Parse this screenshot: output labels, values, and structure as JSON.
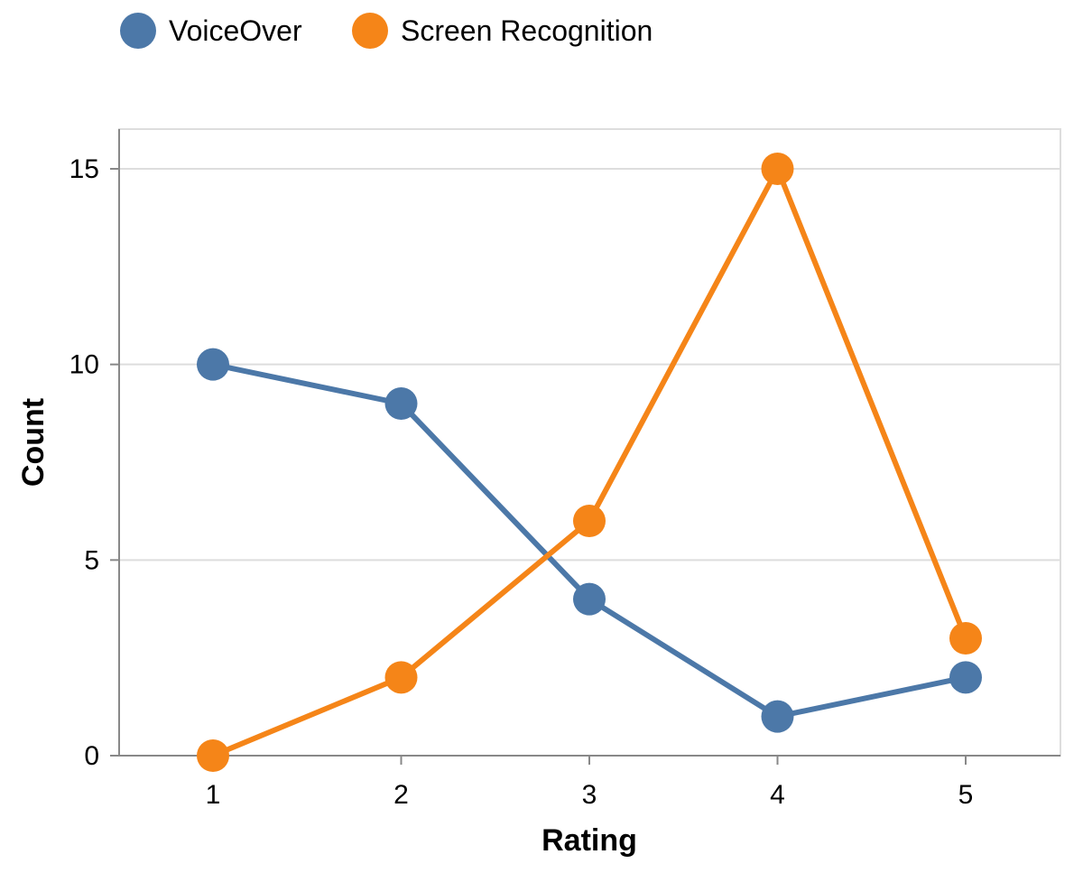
{
  "chart_data": {
    "type": "line",
    "categories": [
      "1",
      "2",
      "3",
      "4",
      "5"
    ],
    "x": [
      1,
      2,
      3,
      4,
      5
    ],
    "xlabel": "Rating",
    "ylabel": "Count",
    "xlim": [
      0.5,
      5.5
    ],
    "ylim": [
      0,
      16
    ],
    "yticks": [
      0,
      5,
      10,
      15
    ],
    "grid": "horizontal",
    "legend_position": "top-left",
    "series": [
      {
        "name": "VoiceOver",
        "color": "#4c78a8",
        "values": [
          10,
          9,
          4,
          1,
          2
        ]
      },
      {
        "name": "Screen Recognition",
        "color": "#f58518",
        "values": [
          0,
          2,
          6,
          15,
          3
        ]
      }
    ]
  }
}
